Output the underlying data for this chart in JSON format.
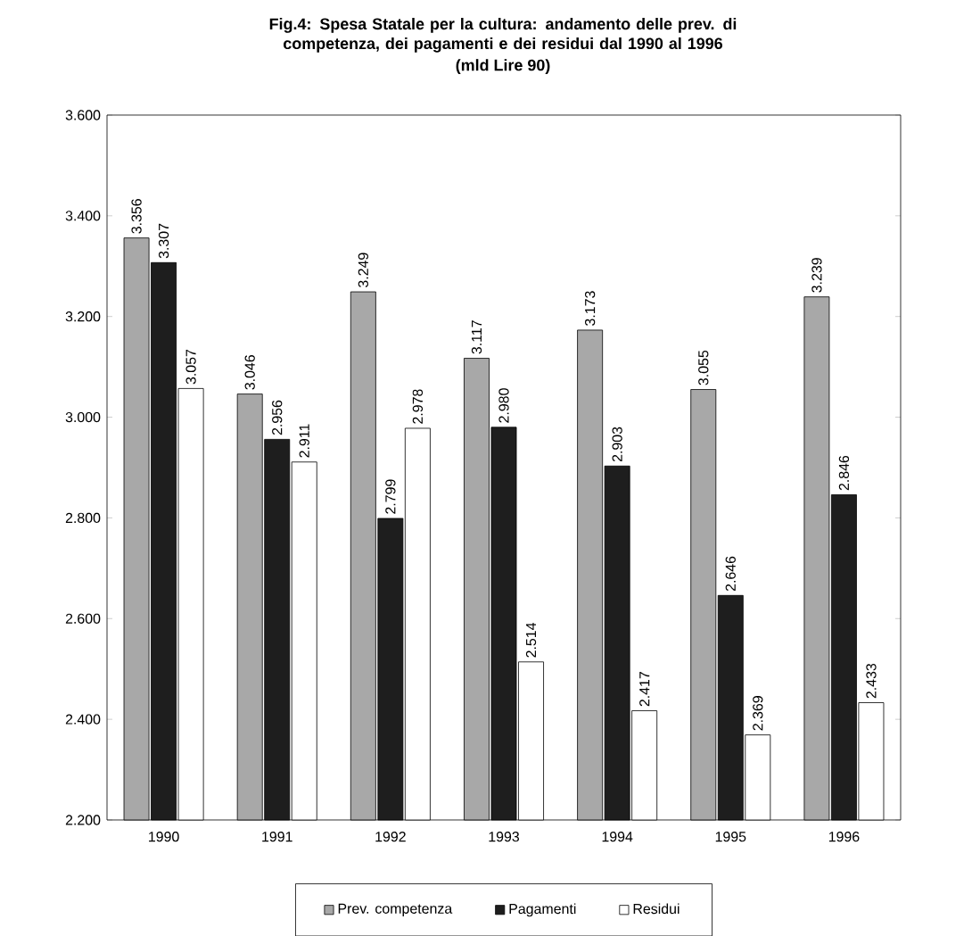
{
  "chart_data": {
    "type": "bar",
    "title": "Fig.4: Spesa Statale per la cultura: andamento delle prev. di competenza, dei pagamenti e dei residui dal 1990 al 1996",
    "subtitle": "(mld Lire 90)",
    "categories": [
      "1990",
      "1991",
      "1992",
      "1993",
      "1994",
      "1995",
      "1996"
    ],
    "series": [
      {
        "name": "Prev. competenza",
        "color": "#a8a8a8",
        "values": [
          3356,
          3046,
          3249,
          3117,
          3173,
          3055,
          3239
        ],
        "value_labels": [
          "3.356",
          "3.046",
          "3.249",
          "3.117",
          "3.173",
          "3.055",
          "3.239"
        ]
      },
      {
        "name": "Pagamenti",
        "color": "#1e1e1e",
        "values": [
          3307,
          2956,
          2799,
          2980,
          2903,
          2646,
          2846
        ],
        "value_labels": [
          "3.307",
          "2.956",
          "2.799",
          "2.980",
          "2.903",
          "2.646",
          "2.846"
        ]
      },
      {
        "name": "Residui",
        "color": "#ffffff",
        "values": [
          3057,
          2911,
          2978,
          2514,
          2417,
          2369,
          2433
        ],
        "value_labels": [
          "3.057",
          "2.911",
          "2.978",
          "2.514",
          "2.417",
          "2.369",
          "2.433"
        ]
      }
    ],
    "ylim": [
      2200,
      3600
    ],
    "yticks": [
      {
        "value": 2200,
        "label": "2.200"
      },
      {
        "value": 2400,
        "label": "2.400"
      },
      {
        "value": 2600,
        "label": "2.600"
      },
      {
        "value": 2800,
        "label": "2.800"
      },
      {
        "value": 3000,
        "label": "3.000"
      },
      {
        "value": 3200,
        "label": "3.200"
      },
      {
        "value": 3400,
        "label": "3.400"
      },
      {
        "value": 3600,
        "label": "3.600"
      }
    ],
    "legend": "bottom"
  }
}
